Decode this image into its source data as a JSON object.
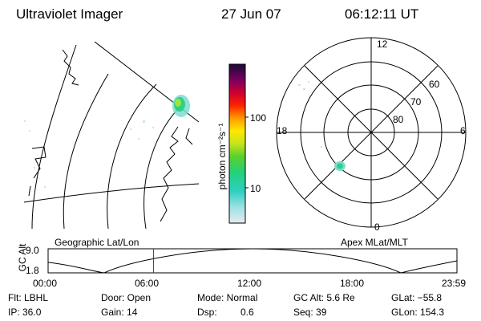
{
  "header": {
    "title": "Ultraviolet Imager",
    "date": "27 Jun 07",
    "time": "06:12:11 UT"
  },
  "colorbar": {
    "unit_label": "photon cm⁻²s⁻¹",
    "ticks": [
      "100",
      "10"
    ]
  },
  "polar_plot": {
    "mlt_labels": [
      "12",
      "18",
      "6",
      "0"
    ],
    "lat_labels": [
      "60",
      "70",
      "80"
    ]
  },
  "panels": {
    "left_label": "Geographic Lat/Lon",
    "right_label": "Apex MLat/MLT"
  },
  "alt_plot": {
    "ylabel": "GC Alt",
    "ymax": "9.0",
    "ymin": "1.8",
    "x_ticks": [
      "00:00",
      "06:00",
      "12:00",
      "18:00",
      "23:59"
    ],
    "current_time_fraction": 0.258
  },
  "info": {
    "flt": "Flt: LBHL",
    "ip": "IP: 36.0",
    "door": "Door: Open",
    "gain": "Gain: 14",
    "mode": "Mode: Normal",
    "dsp_label": "Dsp:",
    "dsp_value": "0.6",
    "gc_alt": "GC Alt: 5.6 Re",
    "seq": "Seq: 39",
    "glat": "GLat: −55.8",
    "glon": "GLon: 154.3"
  }
}
